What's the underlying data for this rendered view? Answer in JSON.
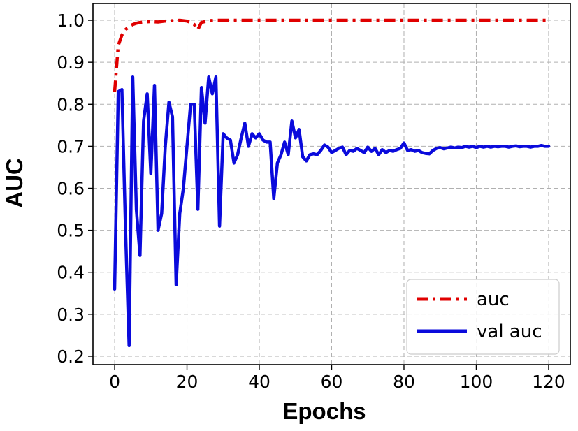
{
  "chart_data": {
    "type": "line",
    "title": "",
    "xlabel": "Epochs",
    "ylabel": "AUC",
    "xlim": [
      -6,
      126
    ],
    "ylim": [
      0.18,
      1.04
    ],
    "xticks": [
      0,
      20,
      40,
      60,
      80,
      100,
      120
    ],
    "xtick_labels": [
      "0",
      "20",
      "40",
      "60",
      "80",
      "100",
      "120"
    ],
    "yticks": [
      0.2,
      0.3,
      0.4,
      0.5,
      0.6,
      0.7,
      0.8,
      0.9,
      1.0
    ],
    "ytick_labels": [
      "0.2",
      "0.3",
      "0.4",
      "0.5",
      "0.6",
      "0.7",
      "0.8",
      "0.9",
      "1.0"
    ],
    "grid": true,
    "legend_position": "lower-right",
    "series": [
      {
        "name": "auc",
        "color": "#e00000",
        "style": "dashdot",
        "x": [
          0,
          1,
          2,
          3,
          4,
          5,
          6,
          7,
          8,
          10,
          12,
          14,
          16,
          18,
          20,
          21,
          22,
          23,
          24,
          26,
          28,
          30,
          40,
          60,
          80,
          100,
          120
        ],
        "values": [
          0.83,
          0.94,
          0.965,
          0.978,
          0.985,
          0.99,
          0.993,
          0.995,
          0.996,
          0.997,
          0.996,
          0.998,
          0.999,
          1.0,
          0.998,
          0.995,
          0.99,
          0.978,
          0.995,
          0.999,
          1.0,
          1.0,
          1.0,
          1.0,
          1.0,
          1.0,
          1.0
        ]
      },
      {
        "name": "val auc",
        "color": "#0a0adc",
        "style": "solid",
        "x": [
          0,
          1,
          2,
          3,
          4,
          5,
          6,
          7,
          8,
          9,
          10,
          11,
          12,
          13,
          14,
          15,
          16,
          17,
          18,
          19,
          20,
          21,
          22,
          23,
          24,
          25,
          26,
          27,
          28,
          29,
          30,
          31,
          32,
          33,
          34,
          35,
          36,
          37,
          38,
          39,
          40,
          41,
          42,
          43,
          44,
          45,
          46,
          47,
          48,
          49,
          50,
          51,
          52,
          53,
          54,
          55,
          56,
          57,
          58,
          59,
          60,
          61,
          62,
          63,
          64,
          65,
          66,
          67,
          68,
          69,
          70,
          71,
          72,
          73,
          74,
          75,
          76,
          77,
          78,
          79,
          80,
          81,
          82,
          83,
          84,
          85,
          86,
          87,
          88,
          89,
          90,
          91,
          92,
          93,
          94,
          95,
          96,
          97,
          98,
          99,
          100,
          101,
          102,
          103,
          104,
          105,
          106,
          107,
          108,
          109,
          110,
          111,
          112,
          113,
          114,
          115,
          116,
          117,
          118,
          119,
          120
        ],
        "values": [
          0.36,
          0.83,
          0.835,
          0.5,
          0.225,
          0.865,
          0.55,
          0.44,
          0.76,
          0.825,
          0.635,
          0.845,
          0.5,
          0.54,
          0.7,
          0.805,
          0.77,
          0.37,
          0.54,
          0.6,
          0.7,
          0.8,
          0.8,
          0.55,
          0.84,
          0.755,
          0.865,
          0.825,
          0.865,
          0.51,
          0.73,
          0.72,
          0.715,
          0.66,
          0.68,
          0.72,
          0.755,
          0.7,
          0.73,
          0.72,
          0.73,
          0.715,
          0.71,
          0.71,
          0.575,
          0.66,
          0.68,
          0.71,
          0.68,
          0.76,
          0.72,
          0.74,
          0.675,
          0.665,
          0.68,
          0.682,
          0.68,
          0.69,
          0.703,
          0.698,
          0.685,
          0.69,
          0.695,
          0.698,
          0.68,
          0.69,
          0.688,
          0.695,
          0.69,
          0.685,
          0.698,
          0.688,
          0.695,
          0.68,
          0.692,
          0.685,
          0.69,
          0.688,
          0.692,
          0.695,
          0.708,
          0.69,
          0.692,
          0.688,
          0.69,
          0.685,
          0.683,
          0.682,
          0.69,
          0.695,
          0.697,
          0.694,
          0.696,
          0.698,
          0.696,
          0.698,
          0.697,
          0.7,
          0.698,
          0.7,
          0.697,
          0.7,
          0.698,
          0.7,
          0.698,
          0.7,
          0.699,
          0.7,
          0.7,
          0.698,
          0.7,
          0.701,
          0.699,
          0.7,
          0.7,
          0.698,
          0.7,
          0.7,
          0.702,
          0.7,
          0.7
        ]
      }
    ]
  }
}
